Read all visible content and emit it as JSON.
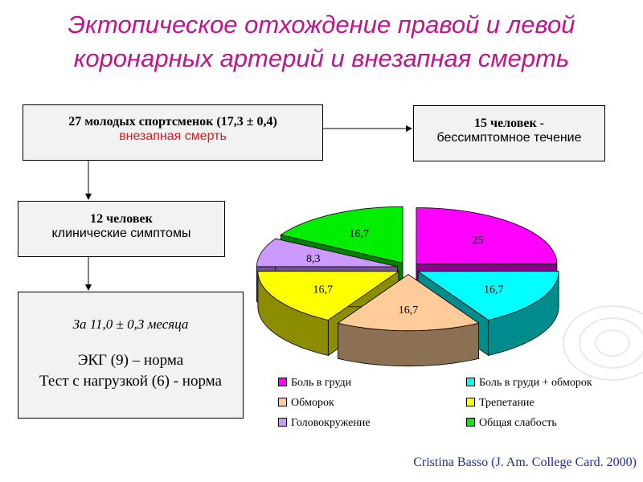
{
  "title_line1": "Эктопическое отхождение правой и левой",
  "title_line2": "коронарных артерий и внезапная смерть",
  "box_main": {
    "bold": "27 молодых спортсменок (17,3 ± 0,4)",
    "red": "внезапная смерть"
  },
  "box_right": {
    "bold": "15 человек -",
    "normal": "бессимптомное течение"
  },
  "box_mid": {
    "bold": "12 человек",
    "normal": "клинические симптомы"
  },
  "box_bottom": {
    "italic": "За 11,0  ± 0,3 месяца",
    "line1": "ЭКГ (9) – норма",
    "line2": "Тест с нагрузкой (6) - норма"
  },
  "citation": "Cristina Basso (J. Am. College Card. 2000)",
  "chart_data": {
    "type": "pie",
    "series": [
      {
        "name": "Боль в груди",
        "value": 25,
        "label": "25",
        "color": "#ff00ff"
      },
      {
        "name": "Боль в груди + обморок",
        "value": 16.7,
        "label": "16,7",
        "color": "#00ffff"
      },
      {
        "name": "Обморок",
        "value": 16.7,
        "label": "16,7",
        "color": "#ffcc99"
      },
      {
        "name": "Трепетание",
        "value": 16.7,
        "label": "16,7",
        "color": "#ffff00"
      },
      {
        "name": "Головокружение",
        "value": 8.3,
        "label": "8,3",
        "color": "#cc99ff"
      },
      {
        "name": "Общая слабость",
        "value": 16.7,
        "label": "16,7",
        "color": "#00ee00"
      }
    ],
    "legend_position": "bottom"
  }
}
